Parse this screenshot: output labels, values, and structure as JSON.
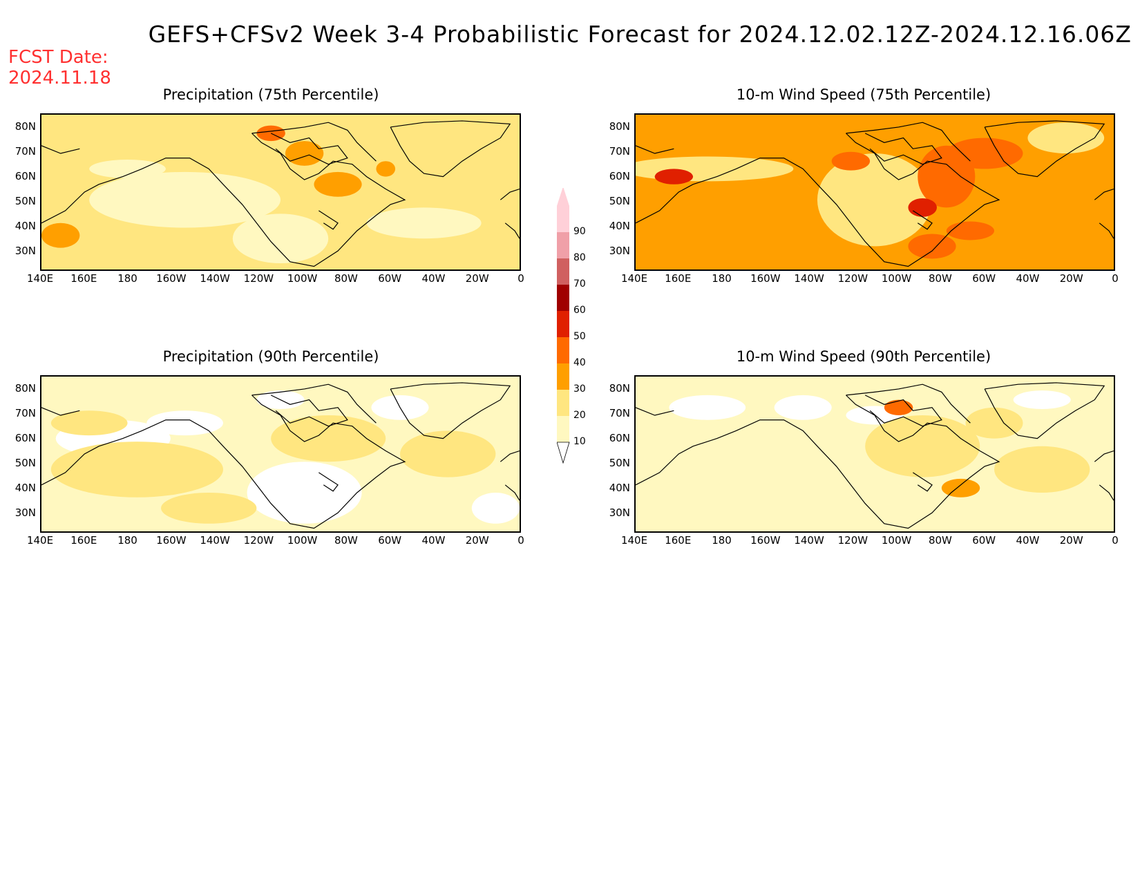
{
  "title": "GEFS+CFSv2 Week 3-4 Probabilistic Forecast for 2024.12.02.12Z-2024.12.16.06Z",
  "fcst_label": "FCST Date:",
  "fcst_date": "2024.11.18",
  "lat_ticks": [
    "80N",
    "70N",
    "60N",
    "50N",
    "40N",
    "30N"
  ],
  "lon_ticks": [
    "140E",
    "160E",
    "180",
    "160W",
    "140W",
    "120W",
    "100W",
    "80W",
    "60W",
    "40W",
    "20W",
    "0"
  ],
  "colorbar": {
    "levels": [
      "10",
      "20",
      "30",
      "40",
      "50",
      "60",
      "70",
      "80",
      "90"
    ],
    "colors": [
      "#fff8c0",
      "#ffe680",
      "#ff9f00",
      "#ff6a00",
      "#e02000",
      "#a00000",
      "#d06060",
      "#f0a0a8",
      "#ffd0d8"
    ]
  },
  "panels": [
    {
      "title": "Precipitation (75th Percentile)",
      "base_color": "#ffe680"
    },
    {
      "title": "10-m Wind Speed (75th Percentile)",
      "base_color": "#ff9f00"
    },
    {
      "title": "Precipitation (90th Percentile)",
      "base_color": "#fff8c0"
    },
    {
      "title": "10-m Wind Speed (90th Percentile)",
      "base_color": "#fff8c0"
    }
  ]
}
